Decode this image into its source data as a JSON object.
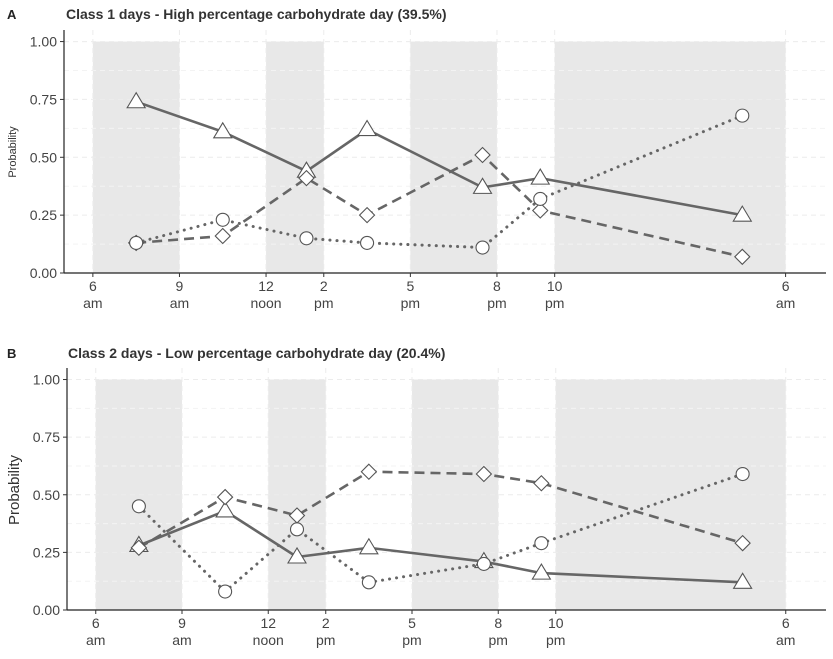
{
  "colors": {
    "shade": "#e8e8e8",
    "line": "#666666",
    "marker_fill": "#ffffff",
    "marker_stroke": "#555555"
  },
  "chart_data": [
    {
      "type": "line",
      "panel": "A",
      "title": "Class 1 days - High percentage carbohydrate day (39.5%)",
      "ylabel": "Probability",
      "ylim": [
        0,
        1.05
      ],
      "y_ticks": [
        "0.00",
        "0.25",
        "0.50",
        "0.75",
        "1.00"
      ],
      "x_ticks": [
        {
          "pos": 6,
          "top": "6",
          "bottom": "am"
        },
        {
          "pos": 9,
          "top": "9",
          "bottom": "am"
        },
        {
          "pos": 12,
          "top": "12",
          "bottom": "noon"
        },
        {
          "pos": 14,
          "top": "2",
          "bottom": "pm"
        },
        {
          "pos": 17,
          "top": "5",
          "bottom": "pm"
        },
        {
          "pos": 20,
          "top": "8",
          "bottom": "pm"
        },
        {
          "pos": 22,
          "top": "10",
          "bottom": "pm"
        },
        {
          "pos": 30,
          "top": "6",
          "bottom": "am"
        }
      ],
      "shaded_intervals": [
        [
          6,
          9
        ],
        [
          12,
          14
        ],
        [
          17,
          20
        ],
        [
          22,
          30
        ]
      ],
      "series": [
        {
          "marker": "triangle",
          "dash": "solid",
          "x": [
            7.5,
            10.5,
            13.4,
            15.5,
            19.5,
            21.5,
            28.5
          ],
          "values": [
            0.74,
            0.61,
            0.44,
            0.62,
            0.37,
            0.41,
            0.25
          ]
        },
        {
          "marker": "diamond",
          "dash": "dashed",
          "x": [
            7.5,
            10.5,
            13.4,
            15.5,
            19.5,
            21.5,
            28.5
          ],
          "values": [
            0.13,
            0.16,
            0.41,
            0.25,
            0.51,
            0.27,
            0.07
          ]
        },
        {
          "marker": "circle",
          "dash": "dotted",
          "x": [
            7.5,
            10.5,
            13.4,
            15.5,
            19.5,
            21.5,
            28.5
          ],
          "values": [
            0.13,
            0.23,
            0.15,
            0.13,
            0.11,
            0.32,
            0.68
          ]
        }
      ]
    },
    {
      "type": "line",
      "panel": "B",
      "title": "Class 2 days - Low percentage carbohydrate day (20.4%)",
      "ylabel": "Probability",
      "ylim": [
        0,
        1.05
      ],
      "y_ticks": [
        "0.00",
        "0.25",
        "0.50",
        "0.75",
        "1.00"
      ],
      "x_ticks": [
        {
          "pos": 6,
          "top": "6",
          "bottom": "am"
        },
        {
          "pos": 9,
          "top": "9",
          "bottom": "am"
        },
        {
          "pos": 12,
          "top": "12",
          "bottom": "noon"
        },
        {
          "pos": 14,
          "top": "2",
          "bottom": "pm"
        },
        {
          "pos": 17,
          "top": "5",
          "bottom": "pm"
        },
        {
          "pos": 20,
          "top": "8",
          "bottom": "pm"
        },
        {
          "pos": 22,
          "top": "10",
          "bottom": "pm"
        },
        {
          "pos": 30,
          "top": "6",
          "bottom": "am"
        }
      ],
      "shaded_intervals": [
        [
          6,
          9
        ],
        [
          12,
          14
        ],
        [
          17,
          20
        ],
        [
          22,
          30
        ]
      ],
      "series": [
        {
          "marker": "triangle",
          "dash": "solid",
          "x": [
            7.5,
            10.5,
            13.0,
            15.5,
            19.5,
            21.5,
            28.5
          ],
          "values": [
            0.28,
            0.43,
            0.23,
            0.27,
            0.21,
            0.16,
            0.12
          ]
        },
        {
          "marker": "diamond",
          "dash": "dashed",
          "x": [
            7.5,
            10.5,
            13.0,
            15.5,
            19.5,
            21.5,
            28.5
          ],
          "values": [
            0.27,
            0.49,
            0.41,
            0.6,
            0.59,
            0.55,
            0.29
          ]
        },
        {
          "marker": "circle",
          "dash": "dotted",
          "x": [
            7.5,
            10.5,
            13.0,
            15.5,
            19.5,
            21.5,
            28.5
          ],
          "values": [
            0.45,
            0.08,
            0.35,
            0.12,
            0.2,
            0.29,
            0.59
          ]
        }
      ]
    }
  ]
}
